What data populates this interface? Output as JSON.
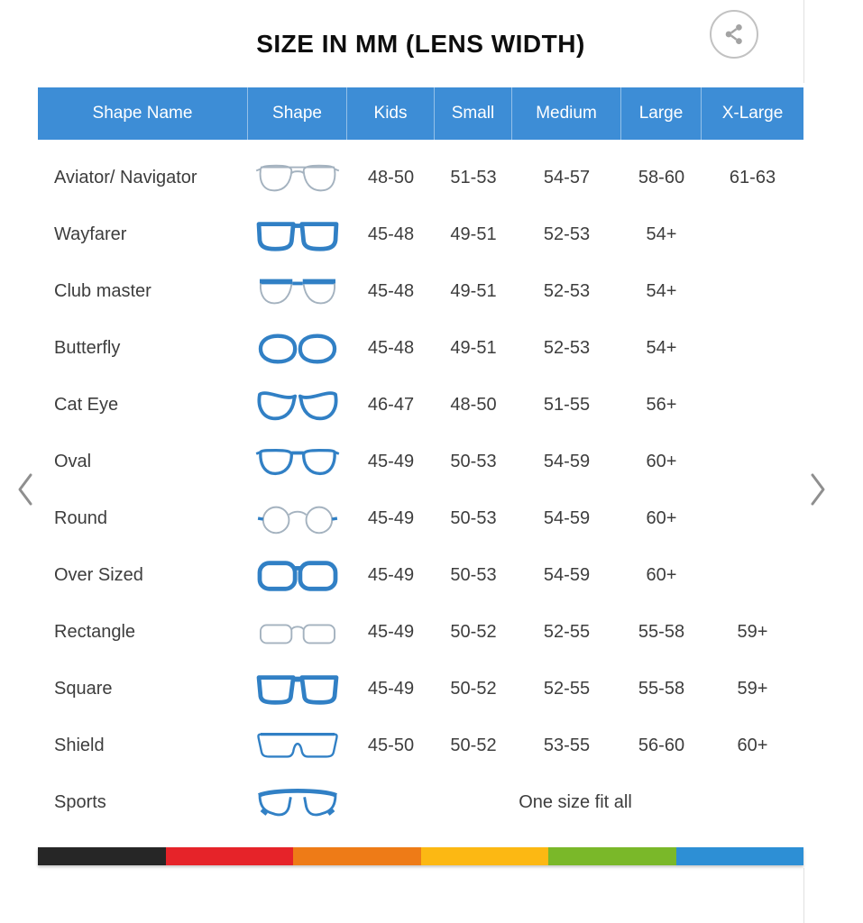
{
  "title": "SIZE IN MM (LENS WIDTH)",
  "share_button": {
    "icon": "share-icon"
  },
  "carousel": {
    "prev_icon": "chevron-left-icon",
    "next_icon": "chevron-right-icon"
  },
  "table": {
    "columns": [
      "Shape Name",
      "Shape",
      "Kids",
      "Small",
      "Medium",
      "Large",
      "X-Large"
    ],
    "rows": [
      {
        "name": "Aviator/ Navigator",
        "icon": "aviator-glasses-icon",
        "sizes": [
          "48-50",
          "51-53",
          "54-57",
          "58-60",
          "61-63"
        ]
      },
      {
        "name": "Wayfarer",
        "icon": "wayfarer-glasses-icon",
        "sizes": [
          "45-48",
          "49-51",
          "52-53",
          "54+",
          ""
        ]
      },
      {
        "name": "Club master",
        "icon": "clubmaster-glasses-icon",
        "sizes": [
          "45-48",
          "49-51",
          "52-53",
          "54+",
          ""
        ]
      },
      {
        "name": "Butterfly",
        "icon": "butterfly-glasses-icon",
        "sizes": [
          "45-48",
          "49-51",
          "52-53",
          "54+",
          ""
        ]
      },
      {
        "name": "Cat Eye",
        "icon": "cateye-glasses-icon",
        "sizes": [
          "46-47",
          "48-50",
          "51-55",
          "56+",
          ""
        ]
      },
      {
        "name": "Oval",
        "icon": "oval-glasses-icon",
        "sizes": [
          "45-49",
          "50-53",
          "54-59",
          "60+",
          ""
        ]
      },
      {
        "name": "Round",
        "icon": "round-glasses-icon",
        "sizes": [
          "45-49",
          "50-53",
          "54-59",
          "60+",
          ""
        ]
      },
      {
        "name": "Over Sized",
        "icon": "oversized-glasses-icon",
        "sizes": [
          "45-49",
          "50-53",
          "54-59",
          "60+",
          ""
        ]
      },
      {
        "name": "Rectangle",
        "icon": "rectangle-glasses-icon",
        "sizes": [
          "45-49",
          "50-52",
          "52-55",
          "55-58",
          "59+"
        ]
      },
      {
        "name": "Square",
        "icon": "square-glasses-icon",
        "sizes": [
          "45-49",
          "50-52",
          "52-55",
          "55-58",
          "59+"
        ]
      },
      {
        "name": "Shield",
        "icon": "shield-glasses-icon",
        "sizes": [
          "45-50",
          "50-52",
          "53-55",
          "56-60",
          "60+"
        ]
      },
      {
        "name": "Sports",
        "icon": "sports-glasses-icon",
        "one_size": "One size fit all"
      }
    ]
  },
  "footer_bar_colors": [
    "#262626",
    "#e62329",
    "#ee7b17",
    "#fcb813",
    "#7ab829",
    "#2d8fd5"
  ],
  "colors": {
    "header_bg": "#3d8dd6",
    "header_text": "#ffffff",
    "row_text": "#3d3d3d",
    "title_text": "#0e0e0e",
    "icon_blue": "#3180c5",
    "icon_gray": "#a4b2bf",
    "chevron_gray": "#8f8f8f",
    "share_gray": "#a3a3a3"
  }
}
